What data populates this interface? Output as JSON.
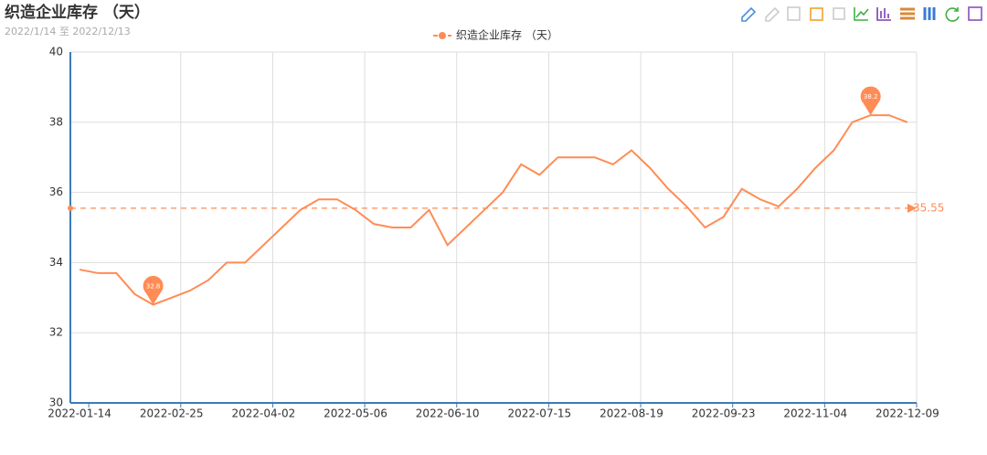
{
  "chart_data": {
    "type": "line",
    "title": "织造企业库存 （天）",
    "subtitle": "2022/1/14 至 2022/12/13",
    "categories": [
      "2022-01-14",
      null,
      null,
      null,
      null,
      "2022-02-25",
      null,
      null,
      null,
      null,
      "2022-04-02",
      null,
      null,
      null,
      null,
      "2022-05-06",
      null,
      null,
      null,
      null,
      "2022-06-10",
      null,
      null,
      null,
      null,
      "2022-07-15",
      null,
      null,
      null,
      null,
      "2022-08-19",
      null,
      null,
      null,
      null,
      "2022-09-23",
      null,
      null,
      null,
      null,
      "2022-11-04",
      null,
      null,
      null,
      null,
      "2022-12-09"
    ],
    "series": [
      {
        "name": "织造企业库存 （天）",
        "color": "#ff8c55",
        "values": [
          33.8,
          33.7,
          33.7,
          33.1,
          32.8,
          33.0,
          33.2,
          33.5,
          34.0,
          34.0,
          34.5,
          35.0,
          35.5,
          35.8,
          35.8,
          35.5,
          35.1,
          35.0,
          35.0,
          35.5,
          34.5,
          35.0,
          35.5,
          36.0,
          36.8,
          36.5,
          37.0,
          37.0,
          37.0,
          36.8,
          37.2,
          36.7,
          36.1,
          35.6,
          35.0,
          35.3,
          36.1,
          35.8,
          35.6,
          36.1,
          36.7,
          37.2,
          38.0,
          38.2,
          38.2,
          38.0
        ]
      }
    ],
    "average": 35.55,
    "ylim": [
      30,
      40
    ],
    "yticks": [
      30,
      32,
      34,
      36,
      38,
      40
    ],
    "grid": true
  }
}
